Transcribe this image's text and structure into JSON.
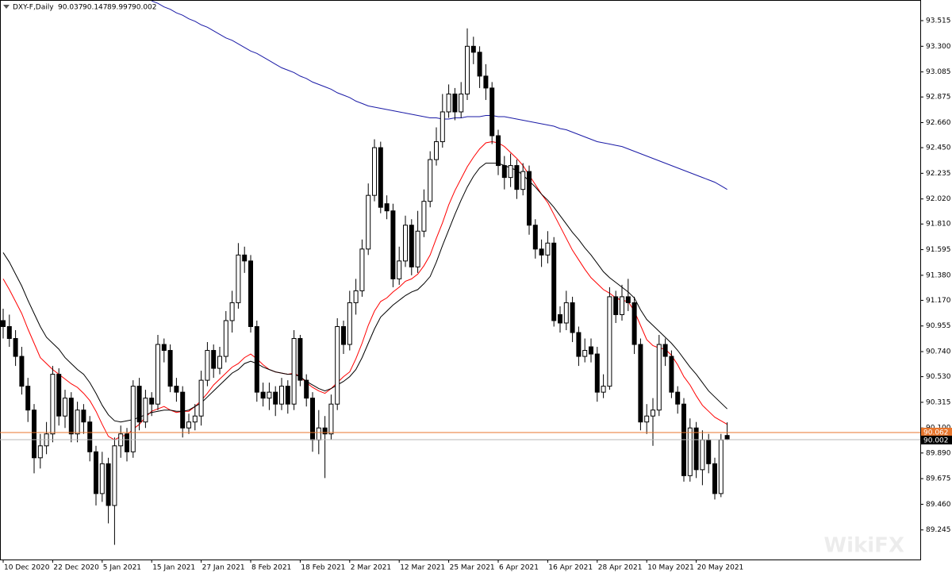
{
  "chart_data": {
    "type": "candlestick",
    "title": "DXY-F,Daily",
    "watermark": "WikiFX",
    "categories": [
      "10 Dec 2020",
      null,
      null,
      null,
      null,
      null,
      null,
      null,
      "22 Dec 2020",
      null,
      null,
      null,
      null,
      null,
      null,
      null,
      "5 Jan 2021",
      null,
      null,
      null,
      null,
      null,
      null,
      null,
      "15 Jan 2021",
      null,
      null,
      null,
      null,
      null,
      null,
      null,
      "27 Jan 2021",
      null,
      null,
      null,
      null,
      null,
      null,
      null,
      "8 Feb 2021",
      null,
      null,
      null,
      null,
      null,
      null,
      null,
      "18 Feb 2021",
      null,
      null,
      null,
      null,
      null,
      null,
      null,
      "2 Mar 2021",
      null,
      null,
      null,
      null,
      null,
      null,
      null,
      "12 Mar 2021",
      null,
      null,
      null,
      null,
      null,
      null,
      null,
      "25 Mar 2021",
      null,
      null,
      null,
      null,
      null,
      null,
      null,
      "6 Apr 2021",
      null,
      null,
      null,
      null,
      null,
      null,
      null,
      "16 Apr 2021",
      null,
      null,
      null,
      null,
      null,
      null,
      null,
      "28 Apr 2021",
      null,
      null,
      null,
      null,
      null,
      null,
      null,
      "10 May 2021",
      null,
      null,
      null,
      null,
      null,
      null,
      null,
      "20 May 2021",
      null,
      null,
      null,
      null,
      null
    ],
    "open": [
      91.0,
      90.95,
      90.85,
      90.7,
      90.45,
      90.25,
      89.85,
      89.95,
      90.05,
      90.55,
      90.2,
      90.35,
      90.05,
      90.25,
      90.15,
      89.9,
      89.55,
      89.8,
      89.45,
      89.95,
      90.05,
      89.9,
      90.45,
      90.15,
      90.35,
      90.3,
      90.8,
      90.75,
      90.45,
      90.4,
      90.1,
      90.15,
      90.2,
      90.5,
      90.75,
      90.6,
      90.7,
      91.0,
      91.15,
      91.55,
      91.5,
      90.95,
      90.4,
      90.35,
      90.4,
      90.3,
      90.45,
      90.3,
      90.85,
      90.5,
      90.35,
      90.0,
      90.1,
      90.05,
      90.3,
      90.95,
      90.8,
      91.15,
      91.25,
      91.6,
      92.05,
      92.45,
      91.98,
      91.92,
      91.35,
      91.5,
      91.8,
      91.45,
      91.75,
      92.0,
      92.35,
      92.5,
      92.75,
      92.9,
      92.75,
      92.9,
      93.3,
      93.25,
      93.05,
      92.95,
      92.55,
      92.3,
      92.2,
      92.3,
      92.1,
      92.25,
      91.8,
      91.6,
      91.55,
      91.65,
      91.05,
      90.98,
      91.15,
      90.9,
      90.7,
      90.78,
      90.72,
      90.4,
      90.45,
      91.2,
      91.05,
      91.2,
      91.15,
      90.8,
      90.15,
      90.2,
      90.25,
      90.8,
      90.7,
      90.4,
      90.3,
      89.7,
      90.1,
      89.75,
      90.0,
      89.8,
      89.55,
      90.037
    ],
    "high": [
      91.1,
      91.05,
      90.92,
      90.78,
      90.52,
      90.3,
      90.05,
      90.15,
      90.62,
      90.6,
      90.42,
      90.4,
      90.32,
      90.3,
      90.2,
      89.95,
      89.9,
      89.85,
      90.02,
      90.12,
      90.1,
      90.5,
      90.52,
      90.42,
      90.4,
      90.88,
      90.85,
      90.8,
      90.52,
      90.45,
      90.22,
      90.3,
      90.58,
      90.82,
      90.8,
      90.78,
      91.08,
      91.25,
      91.65,
      91.62,
      91.55,
      91.0,
      90.48,
      90.48,
      90.45,
      90.52,
      90.5,
      90.92,
      90.88,
      90.55,
      90.4,
      90.25,
      90.2,
      90.38,
      91.02,
      91.0,
      91.25,
      91.35,
      91.68,
      92.15,
      92.52,
      92.5,
      92.05,
      91.98,
      91.62,
      91.88,
      91.85,
      91.92,
      92.1,
      92.42,
      92.62,
      92.9,
      92.98,
      92.95,
      93.0,
      93.45,
      93.38,
      93.3,
      93.15,
      93.0,
      92.6,
      92.38,
      92.4,
      92.35,
      92.32,
      92.3,
      91.85,
      91.68,
      91.75,
      91.7,
      91.12,
      91.25,
      91.2,
      90.95,
      90.85,
      90.85,
      90.78,
      90.55,
      91.28,
      91.25,
      91.3,
      91.35,
      91.2,
      90.85,
      90.3,
      90.35,
      90.88,
      90.85,
      90.75,
      90.45,
      90.35,
      90.18,
      90.15,
      90.08,
      90.05,
      89.85,
      90.05,
      90.147
    ],
    "low": [
      90.85,
      90.78,
      90.62,
      90.38,
      90.15,
      89.72,
      89.76,
      89.88,
      89.98,
      90.12,
      90.1,
      89.98,
      89.98,
      90.05,
      89.82,
      89.45,
      89.48,
      89.3,
      89.12,
      89.85,
      89.82,
      89.85,
      90.08,
      90.1,
      90.2,
      90.25,
      90.65,
      90.4,
      90.32,
      90.02,
      90.05,
      90.08,
      90.12,
      90.45,
      90.52,
      90.55,
      90.65,
      90.9,
      91.1,
      91.4,
      90.9,
      90.32,
      90.28,
      90.25,
      90.2,
      90.25,
      90.22,
      90.25,
      90.45,
      90.28,
      89.9,
      89.88,
      89.68,
      90.0,
      90.25,
      90.72,
      90.75,
      91.05,
      91.2,
      91.55,
      92.0,
      91.9,
      91.85,
      91.28,
      91.3,
      91.45,
      91.38,
      91.4,
      91.7,
      91.95,
      92.3,
      92.45,
      92.7,
      92.68,
      92.7,
      92.85,
      93.15,
      92.95,
      92.85,
      92.48,
      92.22,
      92.1,
      92.12,
      92.02,
      92.05,
      91.72,
      91.52,
      91.45,
      91.48,
      90.95,
      90.9,
      90.92,
      90.82,
      90.62,
      90.65,
      90.65,
      90.32,
      90.35,
      90.42,
      90.98,
      91.0,
      91.08,
      90.72,
      90.08,
      90.05,
      89.95,
      90.2,
      90.62,
      90.35,
      90.22,
      89.65,
      89.65,
      89.68,
      89.62,
      89.72,
      89.5,
      89.52,
      89.997
    ],
    "close": [
      90.95,
      90.85,
      90.7,
      90.45,
      90.25,
      89.85,
      89.95,
      90.05,
      90.55,
      90.2,
      90.35,
      90.05,
      90.25,
      90.15,
      89.9,
      89.55,
      89.8,
      89.45,
      89.95,
      90.05,
      89.9,
      90.45,
      90.15,
      90.35,
      90.3,
      90.8,
      90.75,
      90.45,
      90.4,
      90.1,
      90.15,
      90.2,
      90.5,
      90.75,
      90.6,
      90.7,
      91.0,
      91.15,
      91.55,
      91.5,
      90.95,
      90.4,
      90.35,
      90.4,
      90.3,
      90.45,
      90.3,
      90.85,
      90.5,
      90.35,
      90.0,
      90.1,
      90.05,
      90.3,
      90.95,
      90.8,
      91.15,
      91.25,
      91.6,
      92.05,
      92.45,
      91.95,
      91.92,
      91.35,
      91.5,
      91.8,
      91.45,
      91.75,
      92.0,
      92.35,
      92.5,
      92.75,
      92.9,
      92.75,
      92.9,
      93.3,
      93.25,
      93.05,
      92.95,
      92.55,
      92.3,
      92.2,
      92.3,
      92.1,
      92.25,
      91.8,
      91.6,
      91.55,
      91.65,
      91.0,
      90.98,
      91.15,
      90.9,
      90.7,
      90.75,
      90.72,
      90.4,
      90.45,
      91.2,
      91.05,
      91.2,
      91.15,
      90.8,
      90.15,
      90.2,
      90.25,
      90.8,
      90.7,
      90.4,
      90.3,
      89.7,
      90.1,
      89.75,
      90.0,
      89.8,
      89.55,
      90.0,
      90.002
    ],
    "up_color": "#ffffff",
    "down_color": "#000000",
    "lines": [
      {
        "color": "#ff0000",
        "values": [
          91.35,
          91.26,
          91.16,
          91.06,
          90.93,
          90.81,
          90.69,
          90.64,
          90.59,
          90.55,
          90.51,
          90.47,
          90.44,
          90.39,
          90.33,
          90.24,
          90.13,
          90.03,
          90.0,
          90.03,
          90.04,
          90.09,
          90.13,
          90.19,
          90.24,
          90.26,
          90.28,
          90.25,
          90.23,
          90.24,
          90.24,
          90.28,
          90.33,
          90.39,
          90.46,
          90.51,
          90.56,
          90.61,
          90.64,
          90.69,
          90.72,
          90.68,
          90.63,
          90.59,
          90.57,
          90.56,
          90.55,
          90.56,
          90.53,
          90.48,
          90.44,
          90.41,
          90.39,
          90.43,
          90.48,
          90.53,
          90.57,
          90.68,
          90.81,
          90.96,
          91.08,
          91.16,
          91.19,
          91.24,
          91.28,
          91.33,
          91.35,
          91.39,
          91.46,
          91.55,
          91.69,
          91.82,
          91.97,
          92.09,
          92.19,
          92.29,
          92.37,
          92.44,
          92.49,
          92.5,
          92.49,
          92.46,
          92.41,
          92.36,
          92.3,
          92.22,
          92.14,
          92.06,
          91.99,
          91.89,
          91.79,
          91.69,
          91.59,
          91.51,
          91.43,
          91.36,
          91.31,
          91.26,
          91.23,
          91.19,
          91.17,
          91.16,
          91.08,
          90.96,
          90.84,
          90.79,
          90.77,
          90.76,
          90.71,
          90.63,
          90.53,
          90.46,
          90.37,
          90.29,
          90.24,
          90.19,
          90.16,
          90.13
        ]
      },
      {
        "color": "#000000",
        "values": [
          91.57,
          91.49,
          91.39,
          91.29,
          91.17,
          91.06,
          90.95,
          90.86,
          90.81,
          90.76,
          90.69,
          90.64,
          90.59,
          90.55,
          90.48,
          90.39,
          90.29,
          90.21,
          90.16,
          90.15,
          90.16,
          90.17,
          90.19,
          90.21,
          90.23,
          90.24,
          90.25,
          90.25,
          90.24,
          90.24,
          90.25,
          90.28,
          90.31,
          90.36,
          90.41,
          90.46,
          90.51,
          90.56,
          90.59,
          90.64,
          90.66,
          90.64,
          90.61,
          90.59,
          90.57,
          90.56,
          90.55,
          90.55,
          90.53,
          90.49,
          90.46,
          90.43,
          90.41,
          90.43,
          90.46,
          90.49,
          90.53,
          90.59,
          90.69,
          90.81,
          90.93,
          91.03,
          91.08,
          91.13,
          91.17,
          91.21,
          91.24,
          91.26,
          91.31,
          91.37,
          91.49,
          91.63,
          91.76,
          91.89,
          92.01,
          92.12,
          92.21,
          92.28,
          92.32,
          92.32,
          92.32,
          92.3,
          92.28,
          92.26,
          92.22,
          92.17,
          92.12,
          92.06,
          92.01,
          91.95,
          91.88,
          91.81,
          91.74,
          91.68,
          91.61,
          91.55,
          91.48,
          91.41,
          91.36,
          91.32,
          91.28,
          91.24,
          91.19,
          91.09,
          91.01,
          90.96,
          90.91,
          90.86,
          90.81,
          90.75,
          90.68,
          90.61,
          90.55,
          90.48,
          90.41,
          90.36,
          90.31,
          90.26
        ]
      },
      {
        "color": "#1a1aa6",
        "values": [
          null,
          null,
          null,
          null,
          null,
          null,
          null,
          null,
          null,
          null,
          null,
          null,
          null,
          null,
          null,
          null,
          null,
          null,
          null,
          null,
          null,
          null,
          null,
          null,
          93.68,
          93.66,
          93.63,
          93.61,
          93.58,
          93.56,
          93.53,
          93.51,
          93.48,
          93.46,
          93.43,
          93.4,
          93.37,
          93.35,
          93.32,
          93.29,
          93.26,
          93.24,
          93.21,
          93.18,
          93.15,
          93.12,
          93.1,
          93.08,
          93.05,
          93.03,
          93.0,
          92.98,
          92.96,
          92.94,
          92.91,
          92.89,
          92.87,
          92.84,
          92.82,
          92.8,
          92.79,
          92.78,
          92.77,
          92.76,
          92.75,
          92.74,
          92.73,
          92.72,
          92.71,
          92.7,
          92.7,
          92.69,
          92.69,
          92.7,
          92.7,
          92.71,
          92.71,
          92.71,
          92.72,
          92.72,
          92.71,
          92.71,
          92.7,
          92.69,
          92.68,
          92.67,
          92.66,
          92.65,
          92.64,
          92.63,
          92.61,
          92.6,
          92.58,
          92.56,
          92.54,
          92.52,
          92.5,
          92.49,
          92.48,
          92.47,
          92.46,
          92.44,
          92.42,
          92.4,
          92.38,
          92.36,
          92.34,
          92.32,
          92.3,
          92.28,
          92.26,
          92.24,
          92.22,
          92.2,
          92.18,
          92.16,
          92.13,
          92.1
        ]
      }
    ],
    "ask_line": 90.062,
    "ask_color": "#e8762d",
    "bid_color": "#b8b8b8",
    "ylim": [
      88.997,
      93.688
    ],
    "yticks": [
      93.515,
      {
        "value": 93.3,
        "label": "93.300"
      },
      93.085,
      92.875,
      {
        "value": 92.66,
        "label": "92.660"
      },
      {
        "value": 92.45,
        "label": "92.450"
      },
      92.235,
      {
        "value": 92.02,
        "label": "92.020"
      },
      {
        "value": 91.81,
        "label": "91.810"
      },
      91.595,
      {
        "value": 91.38,
        "label": "91.380"
      },
      {
        "value": 91.17,
        "label": "91.170"
      },
      90.955,
      {
        "value": 90.74,
        "label": "90.740"
      },
      {
        "value": 90.53,
        "label": "90.530"
      },
      90.315,
      {
        "value": 90.1,
        "label": "90.100"
      },
      {
        "value": 89.89,
        "label": "89.890"
      },
      89.675,
      {
        "value": 89.46,
        "label": "89.460"
      },
      89.245
    ]
  }
}
